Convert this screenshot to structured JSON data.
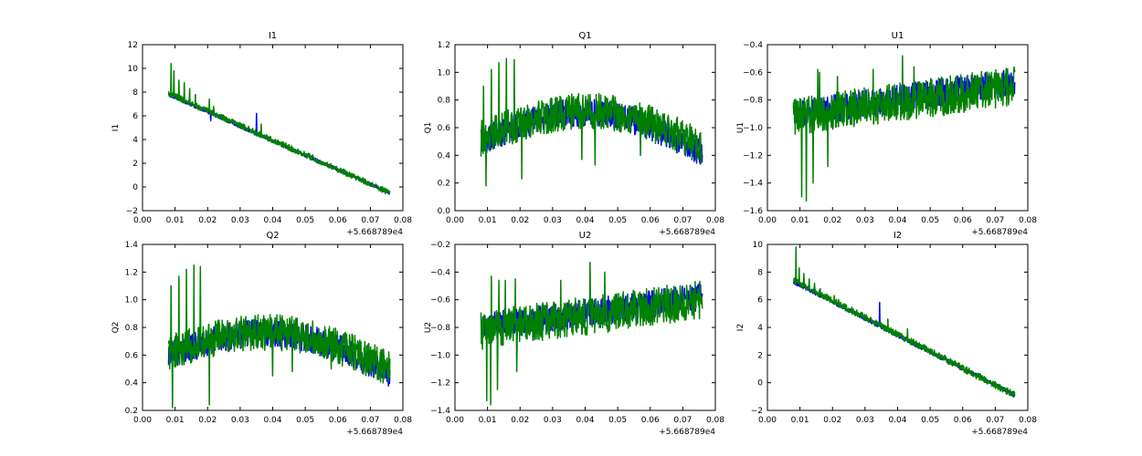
{
  "figure": {
    "colors": {
      "series_1": "#0000ff",
      "series_2": "#008000",
      "frame": "#000000",
      "background": "#ffffff"
    }
  },
  "chart_data": [
    {
      "type": "line",
      "title": "I1",
      "xlabel": "",
      "ylabel": "I1",
      "x_offset_label": "+5.668789e4",
      "xlim": [
        0.0,
        0.08
      ],
      "ylim": [
        -2,
        12
      ],
      "xticks": [
        "0.00",
        "0.01",
        "0.02",
        "0.03",
        "0.04",
        "0.05",
        "0.06",
        "0.07",
        "0.08"
      ],
      "yticks": [
        "−2",
        "0",
        "2",
        "4",
        "6",
        "8",
        "10",
        "12"
      ],
      "x_range": [
        0.008,
        0.076
      ],
      "series": [
        {
          "name": "blue",
          "color": "#0000ff",
          "start": 7.8,
          "end": -0.5,
          "curve": 0.0,
          "noise": 0.15,
          "spikes": [
            [
              0.035,
              6.2
            ],
            [
              0.021,
              5.6
            ]
          ]
        },
        {
          "name": "green",
          "color": "#008000",
          "start": 7.9,
          "end": -0.5,
          "curve": 0.0,
          "noise": 0.25,
          "spikes": [
            [
              0.0088,
              10.4
            ],
            [
              0.0096,
              9.8
            ],
            [
              0.0112,
              9.0
            ],
            [
              0.0128,
              8.8
            ],
            [
              0.0145,
              8.3
            ],
            [
              0.0162,
              7.8
            ],
            [
              0.0205,
              7.4
            ],
            [
              0.0218,
              6.8
            ],
            [
              0.0365,
              5.3
            ],
            [
              0.044,
              3.7
            ]
          ]
        }
      ]
    },
    {
      "type": "line",
      "title": "Q1",
      "xlabel": "",
      "ylabel": "Q1",
      "x_offset_label": "+5.668789e4",
      "xlim": [
        0.0,
        0.08
      ],
      "ylim": [
        0.0,
        1.2
      ],
      "xticks": [
        "0.00",
        "0.01",
        "0.02",
        "0.03",
        "0.04",
        "0.05",
        "0.06",
        "0.07",
        "0.08"
      ],
      "yticks": [
        "0.0",
        "0.2",
        "0.4",
        "0.6",
        "0.8",
        "1.0",
        "1.2"
      ],
      "x_range": [
        0.008,
        0.076
      ],
      "series": [
        {
          "name": "blue",
          "color": "#0000ff",
          "start": 0.5,
          "end": 0.42,
          "curve": 0.25,
          "noise": 0.1,
          "spikes": []
        },
        {
          "name": "green",
          "color": "#008000",
          "start": 0.52,
          "end": 0.46,
          "curve": 0.23,
          "noise": 0.13,
          "spikes": [
            [
              0.0088,
              0.9
            ],
            [
              0.0112,
              1.02
            ],
            [
              0.0135,
              1.07
            ],
            [
              0.0158,
              1.1
            ],
            [
              0.0182,
              1.09
            ],
            [
              0.0205,
              0.95
            ],
            [
              0.0095,
              0.18
            ],
            [
              0.0205,
              0.23
            ],
            [
              0.039,
              0.37
            ],
            [
              0.043,
              0.33
            ],
            [
              0.057,
              0.4
            ]
          ]
        }
      ]
    },
    {
      "type": "line",
      "title": "U1",
      "xlabel": "",
      "ylabel": "U1",
      "x_offset_label": "+5.668789e4",
      "xlim": [
        0.0,
        0.08
      ],
      "ylim": [
        -1.6,
        -0.4
      ],
      "xticks": [
        "0.00",
        "0.01",
        "0.02",
        "0.03",
        "0.04",
        "0.05",
        "0.06",
        "0.07",
        "0.08"
      ],
      "yticks": [
        "−1.6",
        "−1.4",
        "−1.2",
        "−1.0",
        "−0.8",
        "−0.6",
        "−0.4"
      ],
      "x_range": [
        0.008,
        0.076
      ],
      "series": [
        {
          "name": "blue",
          "color": "#0000ff",
          "start": -0.9,
          "end": -0.67,
          "curve": 0.0,
          "noise": 0.1,
          "spikes": []
        },
        {
          "name": "green",
          "color": "#008000",
          "start": -0.92,
          "end": -0.7,
          "curve": 0.0,
          "noise": 0.14,
          "spikes": [
            [
              0.0105,
              -1.5
            ],
            [
              0.012,
              -1.53
            ],
            [
              0.014,
              -1.4
            ],
            [
              0.016,
              -1.32
            ],
            [
              0.0185,
              -1.28
            ],
            [
              0.016,
              -0.6
            ],
            [
              0.0215,
              -0.63
            ],
            [
              0.0325,
              -0.58
            ],
            [
              0.0415,
              -0.48
            ],
            [
              0.045,
              -0.56
            ],
            [
              0.0155,
              -0.58
            ]
          ]
        }
      ]
    },
    {
      "type": "line",
      "title": "Q2",
      "xlabel": "",
      "ylabel": "Q2",
      "x_offset_label": "+5.668789e4",
      "xlim": [
        0.0,
        0.08
      ],
      "ylim": [
        0.2,
        1.4
      ],
      "xticks": [
        "0.00",
        "0.01",
        "0.02",
        "0.03",
        "0.04",
        "0.05",
        "0.06",
        "0.07",
        "0.08"
      ],
      "yticks": [
        "0.2",
        "0.4",
        "0.6",
        "0.8",
        "1.0",
        "1.2",
        "1.4"
      ],
      "x_range": [
        0.008,
        0.076
      ],
      "series": [
        {
          "name": "blue",
          "color": "#0000ff",
          "start": 0.6,
          "end": 0.47,
          "curve": 0.22,
          "noise": 0.1,
          "spikes": []
        },
        {
          "name": "green",
          "color": "#008000",
          "start": 0.62,
          "end": 0.5,
          "curve": 0.2,
          "noise": 0.13,
          "spikes": [
            [
              0.0088,
              1.1
            ],
            [
              0.0112,
              1.17
            ],
            [
              0.0135,
              1.22
            ],
            [
              0.0158,
              1.25
            ],
            [
              0.0178,
              1.24
            ],
            [
              0.0205,
              1.05
            ],
            [
              0.0092,
              0.22
            ],
            [
              0.0205,
              0.24
            ],
            [
              0.04,
              0.45
            ],
            [
              0.046,
              0.48
            ],
            [
              0.058,
              0.5
            ]
          ]
        }
      ]
    },
    {
      "type": "line",
      "title": "U2",
      "xlabel": "",
      "ylabel": "U2",
      "x_offset_label": "+5.668789e4",
      "xlim": [
        0.0,
        0.08
      ],
      "ylim": [
        -1.4,
        -0.2
      ],
      "xticks": [
        "0.00",
        "0.01",
        "0.02",
        "0.03",
        "0.04",
        "0.05",
        "0.06",
        "0.07",
        "0.08"
      ],
      "yticks": [
        "−1.4",
        "−1.2",
        "−1.0",
        "−0.8",
        "−0.6",
        "−0.4",
        "−0.2"
      ],
      "x_range": [
        0.008,
        0.076
      ],
      "series": [
        {
          "name": "blue",
          "color": "#0000ff",
          "start": -0.8,
          "end": -0.58,
          "curve": 0.0,
          "noise": 0.1,
          "spikes": []
        },
        {
          "name": "green",
          "color": "#008000",
          "start": -0.82,
          "end": -0.6,
          "curve": 0.0,
          "noise": 0.14,
          "spikes": [
            [
              0.0098,
              -1.33
            ],
            [
              0.011,
              -1.36
            ],
            [
              0.013,
              -1.25
            ],
            [
              0.0155,
              -1.17
            ],
            [
              0.019,
              -1.12
            ],
            [
              0.0112,
              -0.43
            ],
            [
              0.0135,
              -0.46
            ],
            [
              0.0155,
              -0.46
            ],
            [
              0.0185,
              -0.45
            ],
            [
              0.0325,
              -0.46
            ],
            [
              0.0415,
              -0.33
            ],
            [
              0.046,
              -0.4
            ]
          ]
        }
      ]
    },
    {
      "type": "line",
      "title": "I2",
      "xlabel": "",
      "ylabel": "I2",
      "x_offset_label": "+5.668789e4",
      "xlim": [
        0.0,
        0.08
      ],
      "ylim": [
        -2,
        10
      ],
      "xticks": [
        "0.00",
        "0.01",
        "0.02",
        "0.03",
        "0.04",
        "0.05",
        "0.06",
        "0.07",
        "0.08"
      ],
      "yticks": [
        "−2",
        "0",
        "2",
        "4",
        "6",
        "8",
        "10"
      ],
      "x_range": [
        0.008,
        0.076
      ],
      "series": [
        {
          "name": "blue",
          "color": "#0000ff",
          "start": 7.3,
          "end": -0.9,
          "curve": 0.0,
          "noise": 0.15,
          "spikes": [
            [
              0.0345,
              5.8
            ]
          ]
        },
        {
          "name": "green",
          "color": "#008000",
          "start": 7.4,
          "end": -0.9,
          "curve": 0.0,
          "noise": 0.25,
          "spikes": [
            [
              0.0088,
              9.8
            ],
            [
              0.0098,
              8.3
            ],
            [
              0.0112,
              7.9
            ],
            [
              0.0128,
              7.5
            ],
            [
              0.0145,
              7.2
            ],
            [
              0.0162,
              6.8
            ],
            [
              0.0205,
              6.3
            ],
            [
              0.0218,
              6.0
            ],
            [
              0.037,
              4.6
            ],
            [
              0.043,
              3.9
            ]
          ]
        }
      ]
    }
  ]
}
